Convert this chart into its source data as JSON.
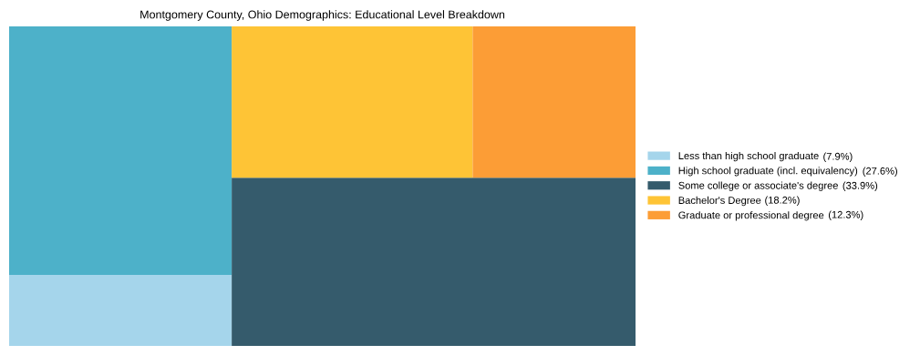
{
  "chart_data": {
    "type": "other",
    "title": "Montgomery County, Ohio Demographics: Educational Level Breakdown",
    "series": [
      {
        "name": "Less than high school graduate",
        "color": "#a5d5eb",
        "values": [
          7.9
        ],
        "value_labels": [
          "(7.9%)"
        ]
      },
      {
        "name": "High school graduate (incl. equivalency)",
        "color": "#4db1c9",
        "values": [
          27.6
        ],
        "value_labels": [
          "(27.6%)"
        ]
      },
      {
        "name": "Some college or associate's degree",
        "color": "#355b6c",
        "values": [
          33.9
        ],
        "value_labels": [
          "(33.9%)"
        ]
      },
      {
        "name": "Bachelor's Degree",
        "color": "#fec436",
        "values": [
          18.2
        ],
        "value_labels": [
          "(18.2%)"
        ]
      },
      {
        "name": "Graduate or professional degree",
        "color": "#fc9d36",
        "values": [
          12.3
        ],
        "value_labels": [
          "(12.3%)"
        ]
      }
    ],
    "legend": "right"
  }
}
